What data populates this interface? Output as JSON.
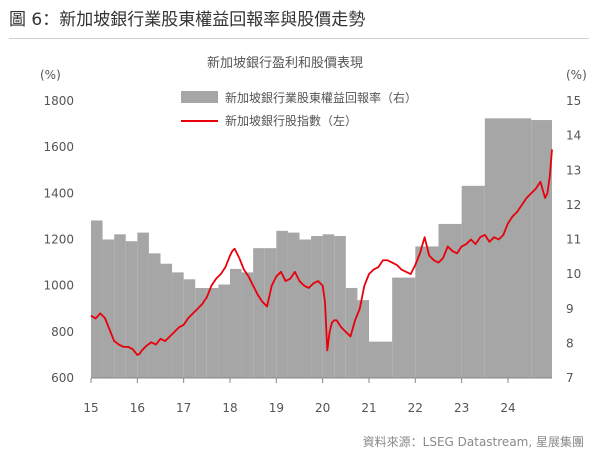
{
  "figure": {
    "title": "圖 6：新加坡銀行業股東權益回報率與股價走勢",
    "source": "資料來源：LSEG Datastream, 星展集團"
  },
  "colors": {
    "bar": "#a6a6a6",
    "line": "#e8000b",
    "text": "#555555"
  },
  "chart_data": {
    "type": "bar+line",
    "title": "新加坡銀行盈利和股價表現",
    "left_axis": {
      "unit": "(%)",
      "range": [
        600,
        1800
      ],
      "ticks": [
        600,
        800,
        1000,
        1200,
        1400,
        1600,
        1800
      ]
    },
    "right_axis": {
      "unit": "(%)",
      "range": [
        7,
        15
      ],
      "ticks": [
        7,
        8,
        9,
        10,
        11,
        12,
        13,
        14,
        15
      ]
    },
    "x_axis": {
      "range": [
        2015.0,
        2024.95
      ],
      "ticks": [
        2015,
        2016,
        2017,
        2018,
        2019,
        2020,
        2021,
        2022,
        2023,
        2024
      ],
      "tick_labels": [
        "15",
        "16",
        "17",
        "18",
        "19",
        "20",
        "21",
        "22",
        "23",
        "24"
      ]
    },
    "legend": {
      "position": "top-center",
      "entries": [
        "新加坡銀行業股東權益回報率（右）",
        "新加坡銀行股指數（左）"
      ]
    },
    "series": [
      {
        "name": "新加坡銀行業股東權益回報率（右）",
        "axis": "right",
        "type": "bar",
        "x_start": [
          2015.0,
          2015.25,
          2015.5,
          2015.75,
          2016.0,
          2016.25,
          2016.5,
          2016.75,
          2017.0,
          2017.25,
          2017.5,
          2017.75,
          2018.0,
          2018.25,
          2018.5,
          2018.75,
          2019.0,
          2019.25,
          2019.5,
          2019.75,
          2020.0,
          2020.25,
          2020.5,
          2020.75,
          2021.0,
          2021.5,
          2022.0,
          2022.5,
          2023.0,
          2023.5,
          2024.0,
          2024.5
        ],
        "x_end": [
          2015.25,
          2015.5,
          2015.75,
          2016.0,
          2016.25,
          2016.5,
          2016.75,
          2017.0,
          2017.25,
          2017.5,
          2017.75,
          2018.0,
          2018.25,
          2018.5,
          2018.75,
          2019.0,
          2019.25,
          2019.5,
          2019.75,
          2020.0,
          2020.25,
          2020.5,
          2020.75,
          2021.0,
          2021.5,
          2022.0,
          2022.5,
          2023.0,
          2023.5,
          2024.0,
          2024.5,
          2024.95
        ],
        "values": [
          11.55,
          11.0,
          11.15,
          10.95,
          11.2,
          10.6,
          10.3,
          10.05,
          9.85,
          9.6,
          9.6,
          9.7,
          10.15,
          10.05,
          10.75,
          10.75,
          11.25,
          11.2,
          11.0,
          11.1,
          11.15,
          11.1,
          9.6,
          9.25,
          8.05,
          9.9,
          10.8,
          11.45,
          12.55,
          14.5,
          14.5,
          14.45
        ]
      },
      {
        "name": "新加坡銀行股指數（左）",
        "axis": "left",
        "type": "line",
        "x": [
          2015.0,
          2015.1,
          2015.2,
          2015.3,
          2015.4,
          2015.5,
          2015.6,
          2015.7,
          2015.8,
          2015.9,
          2016.0,
          2016.05,
          2016.1,
          2016.2,
          2016.3,
          2016.4,
          2016.5,
          2016.6,
          2016.7,
          2016.8,
          2016.9,
          2017.0,
          2017.1,
          2017.2,
          2017.3,
          2017.4,
          2017.5,
          2017.6,
          2017.7,
          2017.8,
          2017.9,
          2018.0,
          2018.05,
          2018.1,
          2018.2,
          2018.3,
          2018.4,
          2018.5,
          2018.6,
          2018.7,
          2018.8,
          2018.9,
          2019.0,
          2019.1,
          2019.2,
          2019.3,
          2019.4,
          2019.5,
          2019.6,
          2019.7,
          2019.8,
          2019.9,
          2020.0,
          2020.05,
          2020.1,
          2020.15,
          2020.2,
          2020.25,
          2020.3,
          2020.4,
          2020.5,
          2020.6,
          2020.7,
          2020.8,
          2020.9,
          2021.0,
          2021.1,
          2021.2,
          2021.3,
          2021.4,
          2021.5,
          2021.6,
          2021.7,
          2021.8,
          2021.9,
          2022.0,
          2022.1,
          2022.2,
          2022.3,
          2022.4,
          2022.5,
          2022.6,
          2022.7,
          2022.8,
          2022.9,
          2023.0,
          2023.1,
          2023.2,
          2023.3,
          2023.4,
          2023.5,
          2023.6,
          2023.7,
          2023.8,
          2023.9,
          2024.0,
          2024.1,
          2024.2,
          2024.3,
          2024.4,
          2024.5,
          2024.6,
          2024.7,
          2024.8,
          2024.85,
          2024.9,
          2024.95
        ],
        "values": [
          870,
          858,
          880,
          860,
          810,
          760,
          745,
          735,
          735,
          725,
          700,
          705,
          720,
          740,
          755,
          745,
          770,
          760,
          780,
          800,
          820,
          830,
          860,
          880,
          900,
          920,
          950,
          1000,
          1030,
          1050,
          1080,
          1130,
          1150,
          1160,
          1120,
          1070,
          1040,
          1000,
          960,
          930,
          910,
          1000,
          1040,
          1060,
          1020,
          1030,
          1060,
          1020,
          1000,
          990,
          1010,
          1020,
          1000,
          930,
          720,
          800,
          840,
          850,
          850,
          820,
          800,
          780,
          850,
          900,
          1000,
          1050,
          1070,
          1080,
          1110,
          1110,
          1100,
          1090,
          1070,
          1060,
          1050,
          1090,
          1140,
          1210,
          1130,
          1110,
          1100,
          1120,
          1170,
          1150,
          1140,
          1170,
          1180,
          1200,
          1180,
          1210,
          1220,
          1190,
          1210,
          1200,
          1220,
          1270,
          1300,
          1320,
          1350,
          1380,
          1400,
          1420,
          1450,
          1380,
          1400,
          1470,
          1590
        ]
      }
    ]
  }
}
